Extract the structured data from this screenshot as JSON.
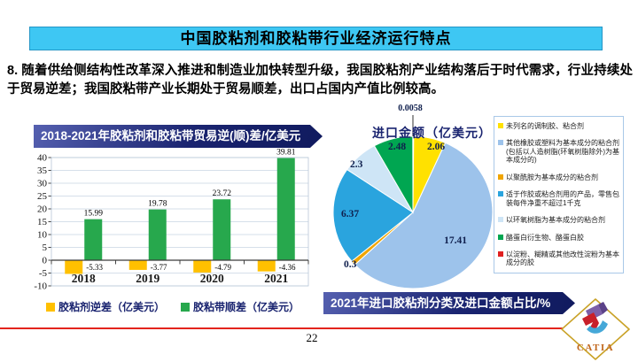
{
  "header": {
    "title": "中国胶粘剂和胶粘带行业经济运行特点"
  },
  "intro": {
    "text": "8. 随着供给侧结构性改革深入推进和制造业加快转型升级，我国胶粘剂产业结构落后于时代需求，行业持续处于贸易逆差；我国胶粘带产业长期处于贸易顺差，出口占国内产值比例较高。"
  },
  "colors": {
    "header_bg": "#3EC7F3",
    "banner_navy": "#1A2470",
    "banner_navy_light": "#5560B0",
    "text_navy": "#1A2470",
    "red_line": "#E3241D",
    "gold": "#C9A227"
  },
  "chart_data": [
    {
      "type": "bar",
      "title": "2018-2021年胶粘剂和胶粘带贸易逆(顺)差/亿美元",
      "categories": [
        "2018",
        "2019",
        "2020",
        "2021"
      ],
      "series": [
        {
          "name": "胶粘剂逆差（亿美元）",
          "color": "#FFC000",
          "values": [
            -5.33,
            -3.77,
            -4.79,
            -4.36
          ]
        },
        {
          "name": "胶粘带顺差（亿美元）",
          "color": "#27A84D",
          "values": [
            15.99,
            19.78,
            23.72,
            39.81
          ]
        }
      ],
      "ylim": [
        -10,
        40
      ],
      "ytick_step": 5,
      "grid": true,
      "legend_position": "bottom"
    },
    {
      "type": "pie",
      "title": "进口金额（亿美元）",
      "subtitle": "2021年进口胶粘剂分类及进口金额占比/%",
      "slices": [
        {
          "label": "未列名的调制胶、粘合剂",
          "value": 2.06,
          "color": "#FFE100"
        },
        {
          "label": "其他橡胶或塑料为基本成分的粘合剂(包括以人造树脂(环氧树脂除外)为基本成分的)",
          "value": 17.41,
          "color": "#9DC3EB"
        },
        {
          "label": "以聚酰胺为基本成分的粘合剂",
          "value": 0.3,
          "color": "#F0A500"
        },
        {
          "label": "适于作胶或粘合剂用的产品，零售包装每件净重不超过1千克",
          "value": 6.37,
          "color": "#2AA4DE"
        },
        {
          "label": "以环氧树脂为基本成分的粘合剂",
          "value": 2.3,
          "color": "#CEE5F6"
        },
        {
          "label": "酪蛋白衍生物、酪蛋白胶",
          "value": 2.48,
          "color": "#00A651"
        },
        {
          "label": "以淀粉、糊精或其他改性淀粉为基本成分的胶",
          "value": 0.0058,
          "color": "#E02020"
        }
      ],
      "start_angle_deg": 0,
      "direction": "clockwise",
      "annotation": "0.0058"
    }
  ],
  "footer": {
    "page_number": "22",
    "logo_text": "CATIA"
  }
}
